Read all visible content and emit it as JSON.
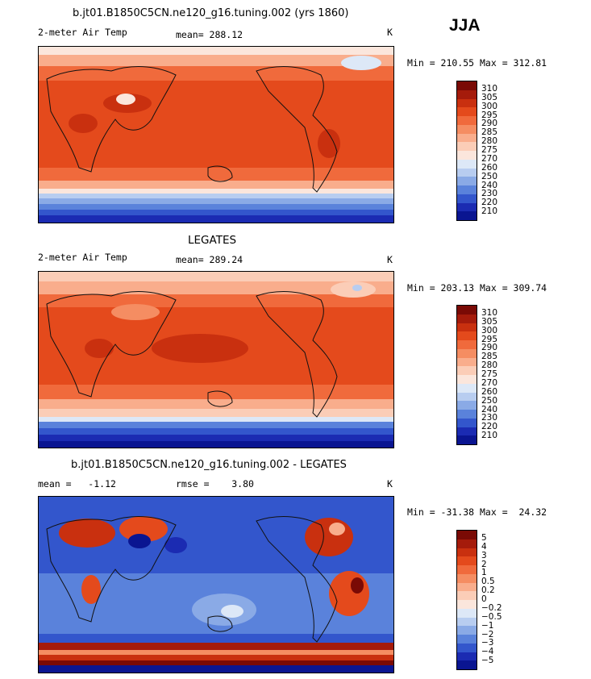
{
  "season": "JJA",
  "panels": [
    {
      "title": "b.jt01.B1850C5CN.ne120_g16.tuning.002 (yrs 1860)",
      "left_label": "2-meter Air Temp",
      "center_label": "mean= 288.12",
      "units": "K",
      "minmax": "Min = 210.55 Max = 312.81"
    },
    {
      "title": "LEGATES",
      "left_label": "2-meter Air Temp",
      "center_label": "mean= 289.24",
      "units": "K",
      "minmax": "Min = 203.13 Max = 309.74"
    },
    {
      "title": "b.jt01.B1850C5CN.ne120_g16.tuning.002 - LEGATES",
      "left_label": "mean =   -1.12",
      "center_label": "rmse =    3.80",
      "units": "K",
      "minmax": "Min = -31.38 Max =  24.32"
    }
  ],
  "chart_data": [
    {
      "type": "heatmap",
      "title": "b.jt01.B1850C5CN.ne120_g16.tuning.002 (yrs 1860)",
      "variable": "2-meter Air Temp",
      "units": "K",
      "mean": 288.12,
      "min": 210.55,
      "max": 312.81,
      "colorbar_levels": [
        "310",
        "305",
        "300",
        "295",
        "290",
        "285",
        "280",
        "275",
        "270",
        "260",
        "250",
        "240",
        "230",
        "220",
        "210"
      ]
    },
    {
      "type": "heatmap",
      "title": "LEGATES",
      "variable": "2-meter Air Temp",
      "units": "K",
      "mean": 289.24,
      "min": 203.13,
      "max": 309.74,
      "colorbar_levels": [
        "310",
        "305",
        "300",
        "295",
        "290",
        "285",
        "280",
        "275",
        "270",
        "260",
        "250",
        "240",
        "230",
        "220",
        "210"
      ]
    },
    {
      "type": "heatmap",
      "title": "b.jt01.B1850C5CN.ne120_g16.tuning.002 - LEGATES",
      "units": "K",
      "mean": -1.12,
      "rmse": 3.8,
      "min": -31.38,
      "max": 24.32,
      "colorbar_levels": [
        "5",
        "4",
        "3",
        "2",
        "1",
        "0.5",
        "0.2",
        "0",
        "−0.2",
        "−0.5",
        "−1",
        "−2",
        "−3",
        "−4",
        "−5"
      ]
    }
  ],
  "colors": {
    "palette": [
      "#7a0a05",
      "#a51b0b",
      "#c9300f",
      "#e44a1c",
      "#f06a3c",
      "#f58d62",
      "#f9ad8c",
      "#fbcdb7",
      "#fbe6dc",
      "#dde8f7",
      "#b8cdf0",
      "#8aaae6",
      "#5a82db",
      "#3356cc",
      "#1b2bb2",
      "#0a1591"
    ]
  }
}
